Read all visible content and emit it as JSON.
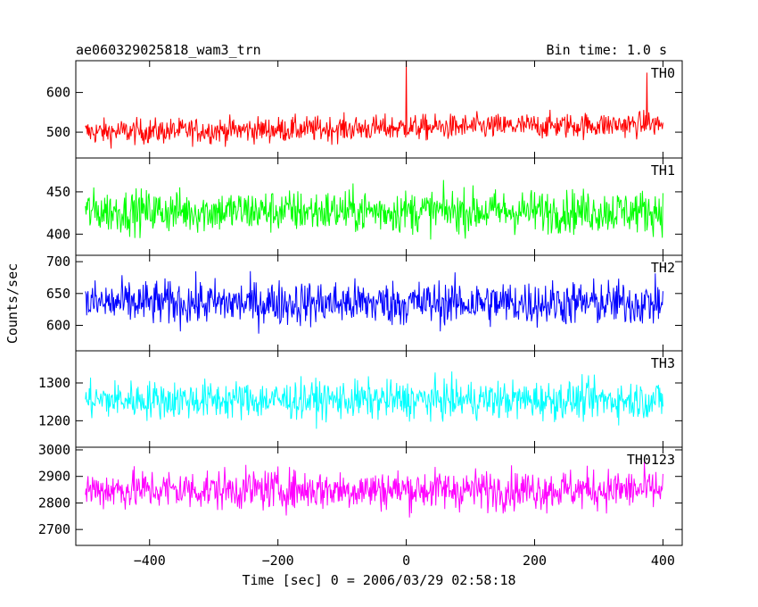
{
  "header": {
    "title": "ae060329025818_wam3_trn",
    "bin_time": "Bin time: 1.0 s"
  },
  "axes": {
    "ylabel": "Counts/sec",
    "xlabel": "Time [sec] 0 = 2006/03/29 02:58:18",
    "xlim": [
      -515,
      430
    ],
    "xticks": [
      -400,
      -200,
      0,
      200,
      400
    ],
    "xtick_labels": [
      "−400",
      "−200",
      "0",
      "200",
      "400"
    ]
  },
  "chart_data": {
    "type": "line",
    "x_start": -500,
    "x_end": 400,
    "bin_seconds": 1.0,
    "panels": [
      {
        "name": "TH0",
        "color": "#ff0000",
        "ylim": [
          435,
          680
        ],
        "yticks": [
          500,
          600
        ],
        "ytick_labels": [
          "500",
          "600"
        ],
        "mean_start": 500,
        "mean_end": 520,
        "noise_amplitude": 38,
        "spikes": [
          {
            "x": 0,
            "y": 680
          },
          {
            "x": 375,
            "y": 650
          }
        ]
      },
      {
        "name": "TH1",
        "color": "#00ff00",
        "ylim": [
          375,
          490
        ],
        "yticks": [
          400,
          450
        ],
        "ytick_labels": [
          "400",
          "450"
        ],
        "mean_start": 427,
        "mean_end": 427,
        "noise_amplitude": 30,
        "spikes": []
      },
      {
        "name": "TH2",
        "color": "#0000ff",
        "ylim": [
          560,
          710
        ],
        "yticks": [
          600,
          650,
          700
        ],
        "ytick_labels": [
          "600",
          "650",
          "700"
        ],
        "mean_start": 635,
        "mean_end": 635,
        "noise_amplitude": 42,
        "spikes": []
      },
      {
        "name": "TH3",
        "color": "#00ffff",
        "ylim": [
          1130,
          1385
        ],
        "yticks": [
          1200,
          1300
        ],
        "ytick_labels": [
          "1200",
          "1300"
        ],
        "mean_start": 1255,
        "mean_end": 1255,
        "noise_amplitude": 60,
        "spikes": []
      },
      {
        "name": "TH0123",
        "color": "#ff00ff",
        "ylim": [
          2640,
          3010
        ],
        "yticks": [
          2700,
          2800,
          2900,
          3000
        ],
        "ytick_labels": [
          "2700",
          "2800",
          "2900",
          "3000"
        ],
        "mean_start": 2850,
        "mean_end": 2850,
        "noise_amplitude": 90,
        "spikes": []
      }
    ]
  }
}
